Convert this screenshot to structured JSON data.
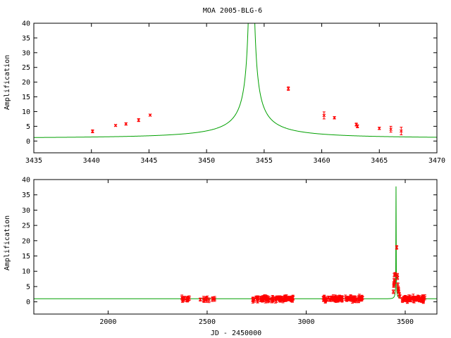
{
  "colors": {
    "model": "#00a000",
    "data": "#ff0000",
    "axis": "#000000"
  },
  "chart_data": [
    {
      "type": "scatter",
      "title": "MOA 2005-BLG-6",
      "xlabel": "",
      "ylabel": "Amplification",
      "xlim": [
        3435,
        3470
      ],
      "ylim": [
        -4,
        40
      ],
      "xticks": [
        3435,
        3440,
        3445,
        3450,
        3455,
        3460,
        3465,
        3470
      ],
      "yticks": [
        0,
        5,
        10,
        15,
        20,
        25,
        30,
        35,
        40
      ],
      "grid": false,
      "model": {
        "type": "line",
        "t0": 3453.9,
        "u0": 0.0055,
        "tE": 17.2,
        "fb": 0.3
      },
      "series": [
        {
          "kind": "data",
          "x": [
            3440.1,
            3442.1,
            3443.0,
            3444.1,
            3445.1,
            3457.1,
            3460.2,
            3461.1,
            3463.0,
            3463.1,
            3465.0,
            3466.0,
            3466.9
          ],
          "y": [
            3.3,
            5.3,
            5.8,
            7.1,
            8.8,
            17.8,
            8.7,
            7.9,
            5.6,
            5.0,
            4.3,
            4.0,
            3.4
          ],
          "err": [
            0.5,
            0.3,
            0.4,
            0.5,
            0.3,
            0.6,
            1.2,
            0.4,
            0.5,
            0.5,
            0.4,
            1.0,
            1.3
          ]
        }
      ]
    },
    {
      "type": "scatter",
      "title": "",
      "xlabel": "JD - 2450000",
      "ylabel": "Amplification",
      "xlim": [
        1625,
        3660
      ],
      "ylim": [
        -4,
        40
      ],
      "xticks": [
        2000,
        2500,
        3000,
        3500
      ],
      "yticks": [
        0,
        5,
        10,
        15,
        20,
        25,
        30,
        35,
        40
      ],
      "grid": false,
      "model": {
        "type": "line",
        "t0": 3453.9,
        "u0": 0.0055,
        "tE": 17.2,
        "fb": 0.3
      },
      "series": [
        {
          "kind": "data-seasons",
          "seasons": [
            [
              2365,
              2410
            ],
            [
              2465,
              2540
            ],
            [
              2730,
              2935
            ],
            [
              3085,
              3285
            ],
            [
              3485,
              3600
            ]
          ],
          "baseline": 1.0,
          "scatter": 0.6,
          "err": 0.8,
          "points_per_season": [
            12,
            12,
            90,
            80,
            60
          ],
          "peak": {
            "x": [
              3440.1,
              3442.1,
              3443.0,
              3444.1,
              3445.1,
              3447.0,
              3449.0,
              3457.1,
              3460.2,
              3461.1,
              3463.0,
              3465.0,
              3466.0,
              3466.9,
              3470.0,
              3473.0
            ],
            "y": [
              3.3,
              5.3,
              5.8,
              7.1,
              8.8,
              6.5,
              9.0,
              17.8,
              8.7,
              7.9,
              5.6,
              4.3,
              4.0,
              3.4,
              2.5,
              1.8
            ]
          }
        }
      ]
    }
  ]
}
